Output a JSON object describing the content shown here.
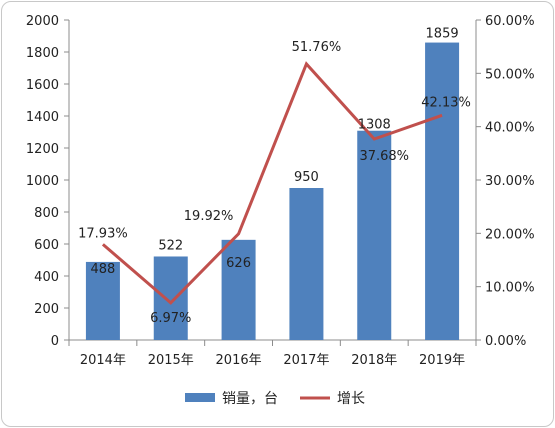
{
  "chart_data": {
    "type": "bar",
    "categories": [
      "2014年",
      "2015年",
      "2016年",
      "2017年",
      "2018年",
      "2019年"
    ],
    "series": [
      {
        "name": "销量，台",
        "type": "bar",
        "axis": "left",
        "values": [
          488,
          522,
          626,
          950,
          1308,
          1859
        ],
        "labels": [
          "488",
          "522",
          "626",
          "950",
          "1308",
          "1859"
        ],
        "color": "#4f81bd"
      },
      {
        "name": "增长",
        "type": "line",
        "axis": "right",
        "values": [
          17.93,
          6.97,
          19.92,
          51.76,
          37.68,
          42.13
        ],
        "labels": [
          "17.93%",
          "6.97%",
          "19.92%",
          "51.76%",
          "37.68%",
          "42.13%"
        ],
        "color": "#c0504d"
      }
    ],
    "ylim_left": [
      0,
      2000
    ],
    "ylim_right": [
      0,
      60
    ],
    "yticks_left": [
      "0",
      "200",
      "400",
      "600",
      "800",
      "1000",
      "1200",
      "1400",
      "1600",
      "1800",
      "2000"
    ],
    "yticks_right": [
      "0.00%",
      "10.00%",
      "20.00%",
      "30.00%",
      "40.00%",
      "50.00%",
      "60.00%"
    ],
    "grid": false,
    "legend_position": "bottom"
  }
}
